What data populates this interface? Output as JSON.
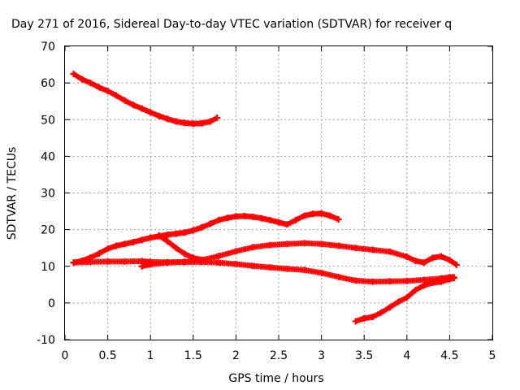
{
  "chart_data": {
    "type": "scatter",
    "title": "Day 271 of 2016, Sidereal Day-to-day VTEC variation (SDTVAR) for receiver q",
    "xlabel": "GPS time / hours",
    "ylabel": "SDTVAR / TECUs",
    "xlim": [
      0,
      5
    ],
    "ylim": [
      -10,
      70
    ],
    "xticks": [
      "0",
      "0.5",
      "1",
      "1.5",
      "2",
      "2.5",
      "3",
      "3.5",
      "4",
      "4.5",
      "5"
    ],
    "yticks": [
      "-10",
      "0",
      "10",
      "20",
      "30",
      "40",
      "50",
      "60",
      "70"
    ],
    "grid": true,
    "marker_color": "#ff0000",
    "series": [
      {
        "x": [
          0.1,
          0.2,
          0.3,
          0.4,
          0.5,
          0.6,
          0.7,
          0.8,
          0.9,
          1.0,
          1.1,
          1.2,
          1.3,
          1.4,
          1.5,
          1.6,
          1.7,
          1.78
        ],
        "y": [
          62.5,
          61,
          60,
          58.8,
          57.8,
          56.6,
          55.2,
          54,
          53,
          52,
          51,
          50.2,
          49.5,
          49.1,
          48.9,
          49,
          49.5,
          50.5
        ]
      },
      {
        "x": [
          0.1,
          0.2,
          0.3,
          0.4,
          0.5,
          0.6,
          0.7,
          0.8,
          0.9,
          1.0,
          1.1,
          1.2,
          1.3,
          1.4,
          1.5,
          1.6,
          1.7,
          1.8,
          1.9,
          2.0,
          2.1,
          2.2,
          2.3,
          2.4,
          2.5,
          2.6,
          2.7,
          2.8,
          2.9,
          3.0,
          3.1,
          3.2
        ],
        "y": [
          11,
          11.5,
          12.4,
          13.5,
          14.8,
          15.6,
          16.1,
          16.6,
          17.2,
          17.8,
          18.2,
          18.6,
          18.9,
          19.2,
          19.8,
          20.6,
          21.6,
          22.6,
          23.2,
          23.6,
          23.7,
          23.5,
          23.1,
          22.6,
          22,
          21.4,
          22.6,
          23.8,
          24.3,
          24.4,
          23.8,
          22.8
        ]
      },
      {
        "x": [
          0.1,
          0.3,
          0.5,
          0.7,
          0.9,
          1.0,
          1.2,
          1.4,
          1.6,
          1.8,
          2.0,
          2.2,
          2.4,
          2.6,
          2.8,
          3.0,
          3.2,
          3.4,
          3.6,
          3.8,
          4.0,
          4.2,
          4.4,
          4.5,
          4.55
        ],
        "y": [
          11,
          11.2,
          11.3,
          11.3,
          11.4,
          11.2,
          11.1,
          11.2,
          11.2,
          11,
          10.6,
          10.1,
          9.7,
          9.3,
          9,
          8.2,
          7.1,
          6.1,
          5.8,
          5.9,
          6,
          6.3,
          6.7,
          7,
          7
        ]
      },
      {
        "x": [
          0.9,
          1.0,
          1.2,
          1.4,
          1.6,
          1.8,
          2.0,
          2.2,
          2.4,
          2.6,
          2.8,
          3.0,
          3.2,
          3.4,
          3.6,
          3.8,
          4.0,
          4.1,
          4.2,
          4.3,
          4.4,
          4.5,
          4.58
        ],
        "y": [
          10,
          10.5,
          11,
          11.2,
          11.7,
          12.8,
          14.1,
          15.2,
          15.8,
          16.1,
          16.3,
          16.1,
          15.6,
          15,
          14.5,
          14,
          12.6,
          11.5,
          11,
          12.3,
          12.7,
          11.7,
          10.4
        ]
      },
      {
        "x": [
          1.1,
          1.2,
          1.3,
          1.4,
          1.5,
          1.6
        ],
        "y": [
          18.4,
          16.8,
          15,
          13.4,
          12.3,
          11.8
        ]
      },
      {
        "x": [
          3.4,
          3.5,
          3.6,
          3.7,
          3.8,
          3.9,
          4.0,
          4.1,
          4.2,
          4.3,
          4.4,
          4.5,
          4.55
        ],
        "y": [
          -5,
          -4.2,
          -3.8,
          -2.6,
          -1.2,
          0.3,
          1.5,
          3.5,
          4.8,
          5.5,
          5.8,
          6.5,
          6.8
        ]
      }
    ]
  }
}
